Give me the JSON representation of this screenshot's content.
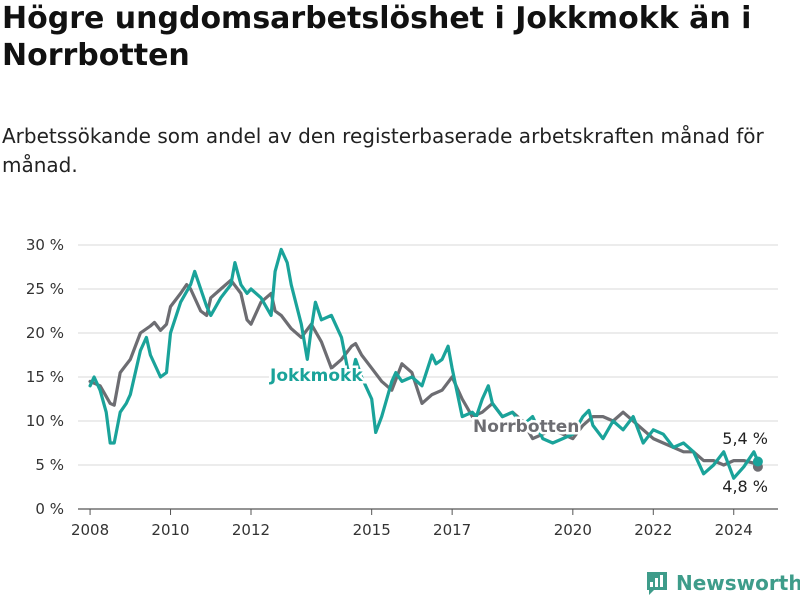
{
  "title": "Högre ungdomsarbetslöshet i Jokkmokk än i Norrbotten",
  "subtitle": "Arbetssökande som andel av den registerbaserade arbetskraften månad för månad.",
  "brand": "Newsworthy",
  "colors": {
    "jokkmokk": "#1aa39a",
    "norrbotten": "#6d6d72",
    "grid": "#d9d9d9",
    "axis": "#555555"
  },
  "chart_data": {
    "type": "line",
    "title": "Högre ungdomsarbetslöshet i Jokkmokk än i Norrbotten",
    "xlabel": "",
    "ylabel": "",
    "ylim": [
      0,
      30
    ],
    "xlim": [
      2007.7,
      2025.1
    ],
    "y_ticks": [
      {
        "value": 0,
        "label": "0 %"
      },
      {
        "value": 5,
        "label": "5 %"
      },
      {
        "value": 10,
        "label": "10 %"
      },
      {
        "value": 15,
        "label": "15 %"
      },
      {
        "value": 20,
        "label": "20 %"
      },
      {
        "value": 25,
        "label": "25 %"
      },
      {
        "value": 30,
        "label": "30 %"
      }
    ],
    "x_ticks": [
      {
        "value": 2008,
        "label": "2008"
      },
      {
        "value": 2010,
        "label": "2010"
      },
      {
        "value": 2012,
        "label": "2012"
      },
      {
        "value": 2015,
        "label": "2015"
      },
      {
        "value": 2017,
        "label": "2017"
      },
      {
        "value": 2020,
        "label": "2020"
      },
      {
        "value": 2022,
        "label": "2022"
      },
      {
        "value": 2024,
        "label": "2024"
      }
    ],
    "grid": true,
    "series": [
      {
        "name": "Norrbotten",
        "label": "Norrbotten",
        "end_label": "4,8 %",
        "points": [
          [
            2008.0,
            14.5
          ],
          [
            2008.25,
            14.0
          ],
          [
            2008.5,
            12.0
          ],
          [
            2008.6,
            11.8
          ],
          [
            2008.75,
            15.5
          ],
          [
            2009.0,
            17.0
          ],
          [
            2009.25,
            20.0
          ],
          [
            2009.5,
            20.8
          ],
          [
            2009.6,
            21.2
          ],
          [
            2009.75,
            20.3
          ],
          [
            2009.9,
            21.0
          ],
          [
            2010.0,
            23.0
          ],
          [
            2010.25,
            24.5
          ],
          [
            2010.4,
            25.5
          ],
          [
            2010.5,
            25.0
          ],
          [
            2010.75,
            22.5
          ],
          [
            2010.9,
            22.0
          ],
          [
            2011.0,
            24.0
          ],
          [
            2011.25,
            25.0
          ],
          [
            2011.5,
            26.0
          ],
          [
            2011.75,
            24.5
          ],
          [
            2011.9,
            21.5
          ],
          [
            2012.0,
            21.0
          ],
          [
            2012.25,
            23.5
          ],
          [
            2012.5,
            24.5
          ],
          [
            2012.6,
            22.5
          ],
          [
            2012.75,
            22.0
          ],
          [
            2013.0,
            20.5
          ],
          [
            2013.25,
            19.5
          ],
          [
            2013.5,
            21.0
          ],
          [
            2013.75,
            19.0
          ],
          [
            2014.0,
            16.0
          ],
          [
            2014.25,
            17.0
          ],
          [
            2014.5,
            18.5
          ],
          [
            2014.6,
            18.8
          ],
          [
            2014.75,
            17.5
          ],
          [
            2015.0,
            16.0
          ],
          [
            2015.25,
            14.5
          ],
          [
            2015.5,
            13.5
          ],
          [
            2015.75,
            16.5
          ],
          [
            2016.0,
            15.5
          ],
          [
            2016.25,
            12.0
          ],
          [
            2016.5,
            13.0
          ],
          [
            2016.75,
            13.5
          ],
          [
            2017.0,
            15.0
          ],
          [
            2017.25,
            12.5
          ],
          [
            2017.5,
            10.5
          ],
          [
            2017.75,
            11.0
          ],
          [
            2018.0,
            12.0
          ],
          [
            2018.25,
            10.5
          ],
          [
            2018.5,
            11.0
          ],
          [
            2018.75,
            10.0
          ],
          [
            2019.0,
            8.0
          ],
          [
            2019.25,
            8.5
          ],
          [
            2019.5,
            9.0
          ],
          [
            2019.75,
            8.5
          ],
          [
            2020.0,
            8.0
          ],
          [
            2020.25,
            9.5
          ],
          [
            2020.5,
            10.5
          ],
          [
            2020.75,
            10.5
          ],
          [
            2021.0,
            10.0
          ],
          [
            2021.25,
            11.0
          ],
          [
            2021.5,
            10.0
          ],
          [
            2021.75,
            9.0
          ],
          [
            2022.0,
            8.0
          ],
          [
            2022.25,
            7.5
          ],
          [
            2022.5,
            7.0
          ],
          [
            2022.75,
            6.5
          ],
          [
            2023.0,
            6.5
          ],
          [
            2023.25,
            5.5
          ],
          [
            2023.5,
            5.5
          ],
          [
            2023.75,
            5.0
          ],
          [
            2024.0,
            5.5
          ],
          [
            2024.25,
            5.5
          ],
          [
            2024.5,
            5.2
          ],
          [
            2024.6,
            4.8
          ]
        ]
      },
      {
        "name": "Jokkmokk",
        "label": "Jokkmokk",
        "end_label": "5,4 %",
        "points": [
          [
            2008.0,
            14.0
          ],
          [
            2008.1,
            15.0
          ],
          [
            2008.25,
            13.5
          ],
          [
            2008.4,
            11.0
          ],
          [
            2008.5,
            7.5
          ],
          [
            2008.6,
            7.5
          ],
          [
            2008.75,
            11.0
          ],
          [
            2008.9,
            12.0
          ],
          [
            2009.0,
            13.0
          ],
          [
            2009.25,
            18.0
          ],
          [
            2009.4,
            19.5
          ],
          [
            2009.5,
            17.5
          ],
          [
            2009.75,
            15.0
          ],
          [
            2009.9,
            15.5
          ],
          [
            2010.0,
            20.0
          ],
          [
            2010.25,
            23.5
          ],
          [
            2010.5,
            25.5
          ],
          [
            2010.6,
            27.0
          ],
          [
            2010.75,
            25.0
          ],
          [
            2010.9,
            23.0
          ],
          [
            2011.0,
            22.0
          ],
          [
            2011.25,
            24.0
          ],
          [
            2011.5,
            25.5
          ],
          [
            2011.6,
            28.0
          ],
          [
            2011.75,
            25.5
          ],
          [
            2011.9,
            24.5
          ],
          [
            2012.0,
            25.0
          ],
          [
            2012.25,
            24.0
          ],
          [
            2012.5,
            22.0
          ],
          [
            2012.6,
            27.0
          ],
          [
            2012.75,
            29.5
          ],
          [
            2012.9,
            28.0
          ],
          [
            2013.0,
            25.5
          ],
          [
            2013.25,
            21.0
          ],
          [
            2013.4,
            17.0
          ],
          [
            2013.5,
            20.5
          ],
          [
            2013.6,
            23.5
          ],
          [
            2013.75,
            21.5
          ],
          [
            2014.0,
            22.0
          ],
          [
            2014.25,
            19.5
          ],
          [
            2014.4,
            16.0
          ],
          [
            2014.5,
            15.0
          ],
          [
            2014.6,
            17.0
          ],
          [
            2014.75,
            15.0
          ],
          [
            2015.0,
            12.5
          ],
          [
            2015.1,
            8.7
          ],
          [
            2015.25,
            10.5
          ],
          [
            2015.5,
            14.5
          ],
          [
            2015.6,
            15.5
          ],
          [
            2015.75,
            14.5
          ],
          [
            2016.0,
            15.0
          ],
          [
            2016.25,
            14.0
          ],
          [
            2016.5,
            17.5
          ],
          [
            2016.6,
            16.5
          ],
          [
            2016.75,
            17.0
          ],
          [
            2016.9,
            18.5
          ],
          [
            2017.0,
            16.0
          ],
          [
            2017.25,
            10.5
          ],
          [
            2017.5,
            11.0
          ],
          [
            2017.6,
            10.5
          ],
          [
            2017.75,
            12.5
          ],
          [
            2017.9,
            14.0
          ],
          [
            2018.0,
            12.0
          ],
          [
            2018.25,
            10.5
          ],
          [
            2018.5,
            11.0
          ],
          [
            2018.75,
            9.5
          ],
          [
            2019.0,
            10.5
          ],
          [
            2019.25,
            8.0
          ],
          [
            2019.5,
            7.5
          ],
          [
            2019.75,
            8.0
          ],
          [
            2020.0,
            8.5
          ],
          [
            2020.25,
            10.5
          ],
          [
            2020.4,
            11.2
          ],
          [
            2020.5,
            9.5
          ],
          [
            2020.75,
            8.0
          ],
          [
            2021.0,
            10.0
          ],
          [
            2021.25,
            9.0
          ],
          [
            2021.5,
            10.5
          ],
          [
            2021.75,
            7.5
          ],
          [
            2022.0,
            9.0
          ],
          [
            2022.25,
            8.5
          ],
          [
            2022.5,
            7.0
          ],
          [
            2022.75,
            7.5
          ],
          [
            2023.0,
            6.5
          ],
          [
            2023.25,
            4.0
          ],
          [
            2023.5,
            5.0
          ],
          [
            2023.75,
            6.5
          ],
          [
            2024.0,
            3.5
          ],
          [
            2024.25,
            4.8
          ],
          [
            2024.5,
            6.5
          ],
          [
            2024.6,
            5.4
          ]
        ]
      }
    ]
  }
}
